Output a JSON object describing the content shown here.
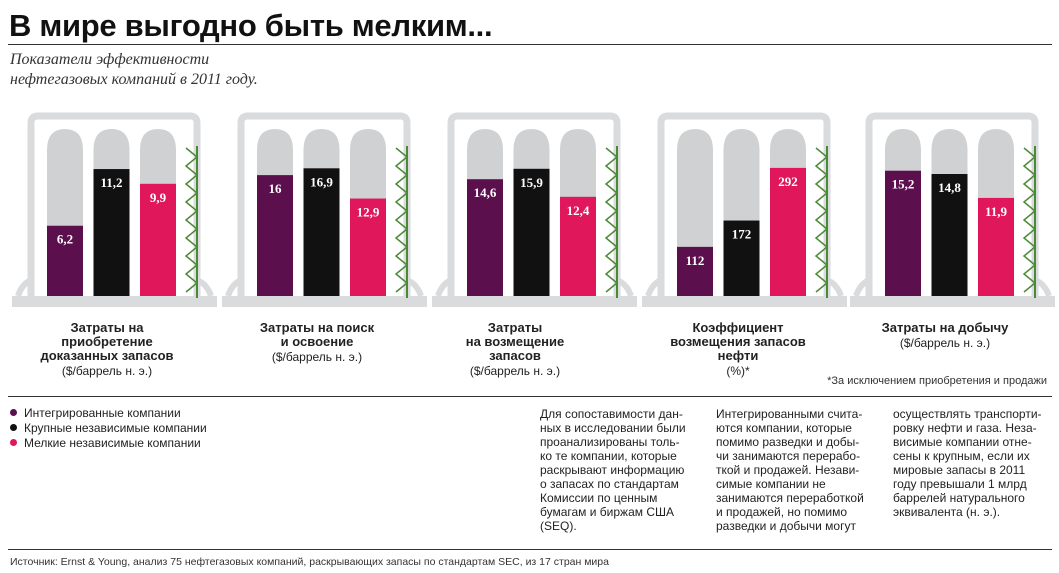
{
  "header": {
    "title": "В мире выгодно быть мелким...",
    "subtitle": "Показатели эффективности\nнефтегазовых компаний в 2011 году."
  },
  "colors": {
    "integrated": "#5c0f4d",
    "large": "#111111",
    "small": "#e0175a",
    "tank": "#cfd1d2",
    "frame": "#d9dbdc",
    "ladder": "#4a8a35"
  },
  "chart_data": [
    {
      "type": "bar",
      "title": "Затраты на приобретение доказанных запасов",
      "label_lines": [
        "Затраты на",
        "приобретение",
        "доказанных запасов"
      ],
      "unit": "($/баррель н. э.)",
      "ylim": [
        0,
        12
      ],
      "series": [
        {
          "name": "Интегрированные компании",
          "values": [
            6.2
          ],
          "labels": [
            "6,2"
          ]
        },
        {
          "name": "Крупные независимые компании",
          "values": [
            11.2
          ],
          "labels": [
            "11,2"
          ]
        },
        {
          "name": "Мелкие независимые компании",
          "values": [
            9.9
          ],
          "labels": [
            "9,9"
          ]
        }
      ]
    },
    {
      "type": "bar",
      "title": "Затраты на поиск и освоение",
      "label_lines": [
        "Затраты на поиск",
        "и освоение"
      ],
      "unit": "($/баррель н. э.)",
      "ylim": [
        0,
        18
      ],
      "series": [
        {
          "name": "Интегрированные компании",
          "values": [
            16
          ],
          "labels": [
            "16"
          ]
        },
        {
          "name": "Крупные независимые компании",
          "values": [
            16.9
          ],
          "labels": [
            "16,9"
          ]
        },
        {
          "name": "Мелкие независимые компании",
          "values": [
            12.9
          ],
          "labels": [
            "12,9"
          ]
        }
      ]
    },
    {
      "type": "bar",
      "title": "Затраты на возмещение запасов",
      "label_lines": [
        "Затраты",
        "на возмещение",
        "запасов"
      ],
      "unit": "($/баррель н. э.)",
      "ylim": [
        0,
        17
      ],
      "series": [
        {
          "name": "Интегрированные компании",
          "values": [
            14.6
          ],
          "labels": [
            "14,6"
          ]
        },
        {
          "name": "Крупные независимые компании",
          "values": [
            15.9
          ],
          "labels": [
            "15,9"
          ]
        },
        {
          "name": "Мелкие независимые компании",
          "values": [
            12.4
          ],
          "labels": [
            "12,4"
          ]
        }
      ]
    },
    {
      "type": "bar",
      "title": "Коэффициент возмещения запасов нефти",
      "label_lines": [
        "Коэффициент",
        "возмещения запасов",
        "нефти"
      ],
      "unit": "(%)*",
      "ylim": [
        0,
        310
      ],
      "series": [
        {
          "name": "Интегрированные компании",
          "values": [
            112
          ],
          "labels": [
            "112"
          ]
        },
        {
          "name": "Крупные независимые компании",
          "values": [
            172
          ],
          "labels": [
            "172"
          ]
        },
        {
          "name": "Мелкие независимые компании",
          "values": [
            292
          ],
          "labels": [
            "292"
          ]
        }
      ]
    },
    {
      "type": "bar",
      "title": "Затраты на добычу",
      "label_lines": [
        "Затраты на добычу"
      ],
      "unit": "($/баррель н. э.)",
      "ylim": [
        0,
        16.5
      ],
      "series": [
        {
          "name": "Интегрированные компании",
          "values": [
            15.2
          ],
          "labels": [
            "15,2"
          ]
        },
        {
          "name": "Крупные независимые компании",
          "values": [
            14.8
          ],
          "labels": [
            "14,8"
          ]
        },
        {
          "name": "Мелкие независимые компании",
          "values": [
            11.9
          ],
          "labels": [
            "11,9"
          ]
        }
      ]
    }
  ],
  "footnote": "*За исключением приобретения и продажи",
  "legend": [
    "Интегрированные компании",
    "Крупные независимые компании",
    "Мелкие независимые компании"
  ],
  "text_columns": [
    "Для сопоставимости дан-\nных в исследовании были\nпроанализированы толь-\nко те компании, которые\nраскрывают информацию\nо запасах по стандартам\nКомиссии по ценным\nбумагам и биржам США\n(SEQ).",
    "Интегрированными счита-\nются компании, которые\nпомимо разведки и добы-\nчи занимаются перерабо-\nткой и продажей. Незави-\nсимые компании не\nзанимаются переработкой\nи продажей, но помимо\nразведки и добычи могут",
    "осуществлять транспорти-\nровку нефти и газа. Неза-\nвисимые компании отне-\nсены к крупным, если их\nмировые запасы в 2011\nгоду превышали 1 млрд\nбаррелей натурального\nэквивалента (н. э.)."
  ],
  "source": "Источник: Ernst & Young, анализ 75 нефтегазовых компаний, раскрывающих запасы по стандартам SEC, из 17 стран мира"
}
